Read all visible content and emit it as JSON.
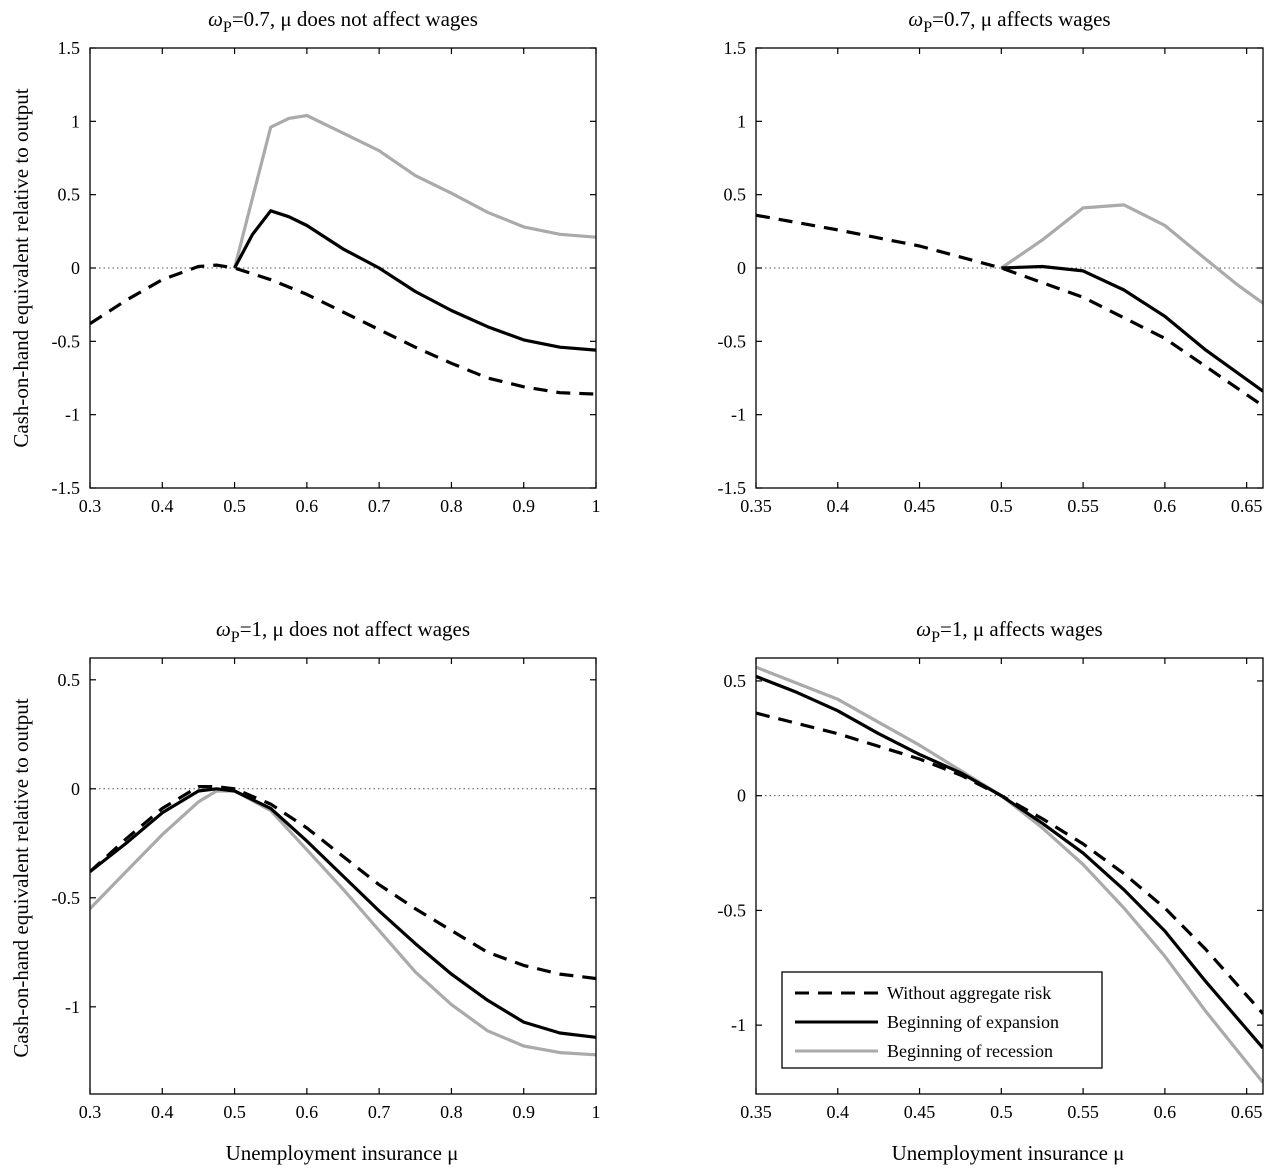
{
  "figure": {
    "ylabel": "Cash-on-hand equivalent relative to output",
    "xlabel": "Unemployment insurance μ"
  },
  "legend": {
    "placement": "lower-left of bottom-right panel",
    "entries": [
      {
        "label": "Without aggregate risk",
        "style": "dashed",
        "color": "#000000"
      },
      {
        "label": "Beginning of expansion",
        "style": "solid",
        "color": "#000000"
      },
      {
        "label": "Beginning of recession",
        "style": "solid",
        "color": "#aaaaaa"
      }
    ]
  },
  "chart_data": [
    {
      "type": "line",
      "title_omega": "ω",
      "title_sub": "P",
      "title_rest": "=0.7, μ does not affect wages",
      "xlim": [
        0.3,
        1.0
      ],
      "ylim": [
        -1.5,
        1.5
      ],
      "xticks": [
        0.3,
        0.4,
        0.5,
        0.6,
        0.7,
        0.8,
        0.9,
        1
      ],
      "xtick_labels": [
        "0.3",
        "0.4",
        "0.5",
        "0.6",
        "0.7",
        "0.8",
        "0.9",
        "1"
      ],
      "yticks": [
        -1.5,
        -1,
        -0.5,
        0,
        0.5,
        1,
        1.5
      ],
      "ytick_labels": [
        "-1.5",
        "-1",
        "-0.5",
        "0",
        "0.5",
        "1",
        "1.5"
      ],
      "zero_line": true,
      "series": [
        {
          "name": "Without aggregate risk",
          "style": "dashed",
          "color": "#000000",
          "x": [
            0.3,
            0.35,
            0.4,
            0.45,
            0.475,
            0.5,
            0.55,
            0.6,
            0.65,
            0.7,
            0.75,
            0.8,
            0.85,
            0.9,
            0.95,
            1.0
          ],
          "y": [
            -0.38,
            -0.22,
            -0.08,
            0.01,
            0.02,
            0.0,
            -0.08,
            -0.18,
            -0.3,
            -0.42,
            -0.54,
            -0.65,
            -0.75,
            -0.81,
            -0.85,
            -0.86
          ]
        },
        {
          "name": "Beginning of expansion",
          "style": "solid",
          "color": "#000000",
          "x": [
            0.5,
            0.525,
            0.55,
            0.575,
            0.6,
            0.65,
            0.7,
            0.75,
            0.8,
            0.85,
            0.9,
            0.95,
            1.0
          ],
          "y": [
            0.0,
            0.23,
            0.39,
            0.35,
            0.29,
            0.13,
            0.0,
            -0.16,
            -0.29,
            -0.4,
            -0.49,
            -0.54,
            -0.56
          ]
        },
        {
          "name": "Beginning of recession",
          "style": "solid",
          "color": "#aaaaaa",
          "x": [
            0.5,
            0.525,
            0.55,
            0.575,
            0.6,
            0.65,
            0.7,
            0.75,
            0.8,
            0.85,
            0.9,
            0.95,
            1.0
          ],
          "y": [
            0.0,
            0.48,
            0.96,
            1.02,
            1.04,
            0.92,
            0.8,
            0.63,
            0.51,
            0.38,
            0.28,
            0.23,
            0.21
          ]
        }
      ]
    },
    {
      "type": "line",
      "title_omega": "ω",
      "title_sub": "P",
      "title_rest": "=0.7, μ affects wages",
      "xlim": [
        0.35,
        0.66
      ],
      "ylim": [
        -1.5,
        1.5
      ],
      "xticks": [
        0.35,
        0.4,
        0.45,
        0.5,
        0.55,
        0.6,
        0.65
      ],
      "xtick_labels": [
        "0.35",
        "0.4",
        "0.45",
        "0.5",
        "0.55",
        "0.6",
        "0.65"
      ],
      "yticks": [
        -1.5,
        -1,
        -0.5,
        0,
        0.5,
        1,
        1.5
      ],
      "ytick_labels": [
        "-1.5",
        "-1",
        "-0.5",
        "0",
        "0.5",
        "1",
        "1.5"
      ],
      "zero_line": true,
      "series": [
        {
          "name": "Without aggregate risk",
          "style": "dashed",
          "color": "#000000",
          "x": [
            0.35,
            0.4,
            0.45,
            0.5,
            0.55,
            0.6,
            0.66
          ],
          "y": [
            0.36,
            0.26,
            0.15,
            0.0,
            -0.2,
            -0.48,
            -0.94
          ]
        },
        {
          "name": "Beginning of expansion",
          "style": "solid",
          "color": "#000000",
          "x": [
            0.5,
            0.525,
            0.55,
            0.575,
            0.6,
            0.625,
            0.66
          ],
          "y": [
            0.0,
            0.01,
            -0.02,
            -0.15,
            -0.33,
            -0.56,
            -0.84
          ]
        },
        {
          "name": "Beginning of recession",
          "style": "solid",
          "color": "#aaaaaa",
          "x": [
            0.5,
            0.525,
            0.55,
            0.575,
            0.6,
            0.625,
            0.645,
            0.66
          ],
          "y": [
            0.0,
            0.19,
            0.41,
            0.43,
            0.29,
            0.06,
            -0.12,
            -0.24
          ]
        }
      ]
    },
    {
      "type": "line",
      "title_omega": "ω",
      "title_sub": "P",
      "title_rest": "=1, μ does not affect wages",
      "xlim": [
        0.3,
        1.0
      ],
      "ylim": [
        -1.4,
        0.6
      ],
      "xticks": [
        0.3,
        0.4,
        0.5,
        0.6,
        0.7,
        0.8,
        0.9,
        1
      ],
      "xtick_labels": [
        "0.3",
        "0.4",
        "0.5",
        "0.6",
        "0.7",
        "0.8",
        "0.9",
        "1"
      ],
      "yticks": [
        -1,
        -0.5,
        0,
        0.5
      ],
      "ytick_labels": [
        "-1",
        "-0.5",
        "0",
        "0.5"
      ],
      "zero_line": true,
      "series": [
        {
          "name": "Without aggregate risk",
          "style": "dashed",
          "color": "#000000",
          "x": [
            0.3,
            0.35,
            0.4,
            0.45,
            0.475,
            0.5,
            0.55,
            0.6,
            0.65,
            0.7,
            0.75,
            0.8,
            0.85,
            0.9,
            0.95,
            1.0
          ],
          "y": [
            -0.38,
            -0.23,
            -0.09,
            0.01,
            0.01,
            0.0,
            -0.07,
            -0.18,
            -0.31,
            -0.44,
            -0.55,
            -0.65,
            -0.75,
            -0.81,
            -0.85,
            -0.87
          ]
        },
        {
          "name": "Beginning of expansion",
          "style": "solid",
          "color": "#000000",
          "x": [
            0.3,
            0.35,
            0.4,
            0.45,
            0.475,
            0.5,
            0.55,
            0.6,
            0.65,
            0.7,
            0.75,
            0.8,
            0.85,
            0.9,
            0.95,
            1.0
          ],
          "y": [
            -0.38,
            -0.25,
            -0.11,
            -0.01,
            0.0,
            -0.01,
            -0.09,
            -0.24,
            -0.4,
            -0.56,
            -0.71,
            -0.85,
            -0.97,
            -1.07,
            -1.12,
            -1.14
          ]
        },
        {
          "name": "Beginning of recession",
          "style": "solid",
          "color": "#aaaaaa",
          "x": [
            0.3,
            0.35,
            0.4,
            0.45,
            0.475,
            0.5,
            0.55,
            0.6,
            0.65,
            0.7,
            0.75,
            0.8,
            0.85,
            0.9,
            0.95,
            1.0
          ],
          "y": [
            -0.55,
            -0.38,
            -0.21,
            -0.06,
            -0.01,
            -0.01,
            -0.1,
            -0.28,
            -0.46,
            -0.65,
            -0.84,
            -0.99,
            -1.11,
            -1.18,
            -1.21,
            -1.22
          ]
        }
      ]
    },
    {
      "type": "line",
      "title_omega": "ω",
      "title_sub": "P",
      "title_rest": "=1, μ affects wages",
      "xlim": [
        0.35,
        0.66
      ],
      "ylim": [
        -1.3,
        0.6
      ],
      "xticks": [
        0.35,
        0.4,
        0.45,
        0.5,
        0.55,
        0.6,
        0.65
      ],
      "xtick_labels": [
        "0.35",
        "0.4",
        "0.45",
        "0.5",
        "0.55",
        "0.6",
        "0.65"
      ],
      "yticks": [
        -1,
        -0.5,
        0,
        0.5
      ],
      "ytick_labels": [
        "-1",
        "-0.5",
        "0",
        "0.5"
      ],
      "zero_line": true,
      "series": [
        {
          "name": "Without aggregate risk",
          "style": "dashed",
          "color": "#000000",
          "x": [
            0.35,
            0.4,
            0.45,
            0.475,
            0.5,
            0.525,
            0.55,
            0.575,
            0.6,
            0.625,
            0.66
          ],
          "y": [
            0.36,
            0.27,
            0.16,
            0.09,
            0.0,
            -0.1,
            -0.21,
            -0.34,
            -0.49,
            -0.67,
            -0.95
          ]
        },
        {
          "name": "Beginning of expansion",
          "style": "solid",
          "color": "#000000",
          "x": [
            0.35,
            0.375,
            0.4,
            0.425,
            0.45,
            0.475,
            0.5,
            0.525,
            0.55,
            0.575,
            0.6,
            0.625,
            0.66
          ],
          "y": [
            0.52,
            0.45,
            0.37,
            0.27,
            0.18,
            0.1,
            0.0,
            -0.12,
            -0.25,
            -0.41,
            -0.59,
            -0.81,
            -1.1
          ]
        },
        {
          "name": "Beginning of recession",
          "style": "solid",
          "color": "#aaaaaa",
          "x": [
            0.35,
            0.375,
            0.4,
            0.425,
            0.45,
            0.475,
            0.5,
            0.525,
            0.55,
            0.575,
            0.6,
            0.625,
            0.66
          ],
          "y": [
            0.56,
            0.49,
            0.42,
            0.32,
            0.22,
            0.11,
            0.0,
            -0.14,
            -0.3,
            -0.49,
            -0.7,
            -0.94,
            -1.25
          ]
        }
      ]
    }
  ]
}
